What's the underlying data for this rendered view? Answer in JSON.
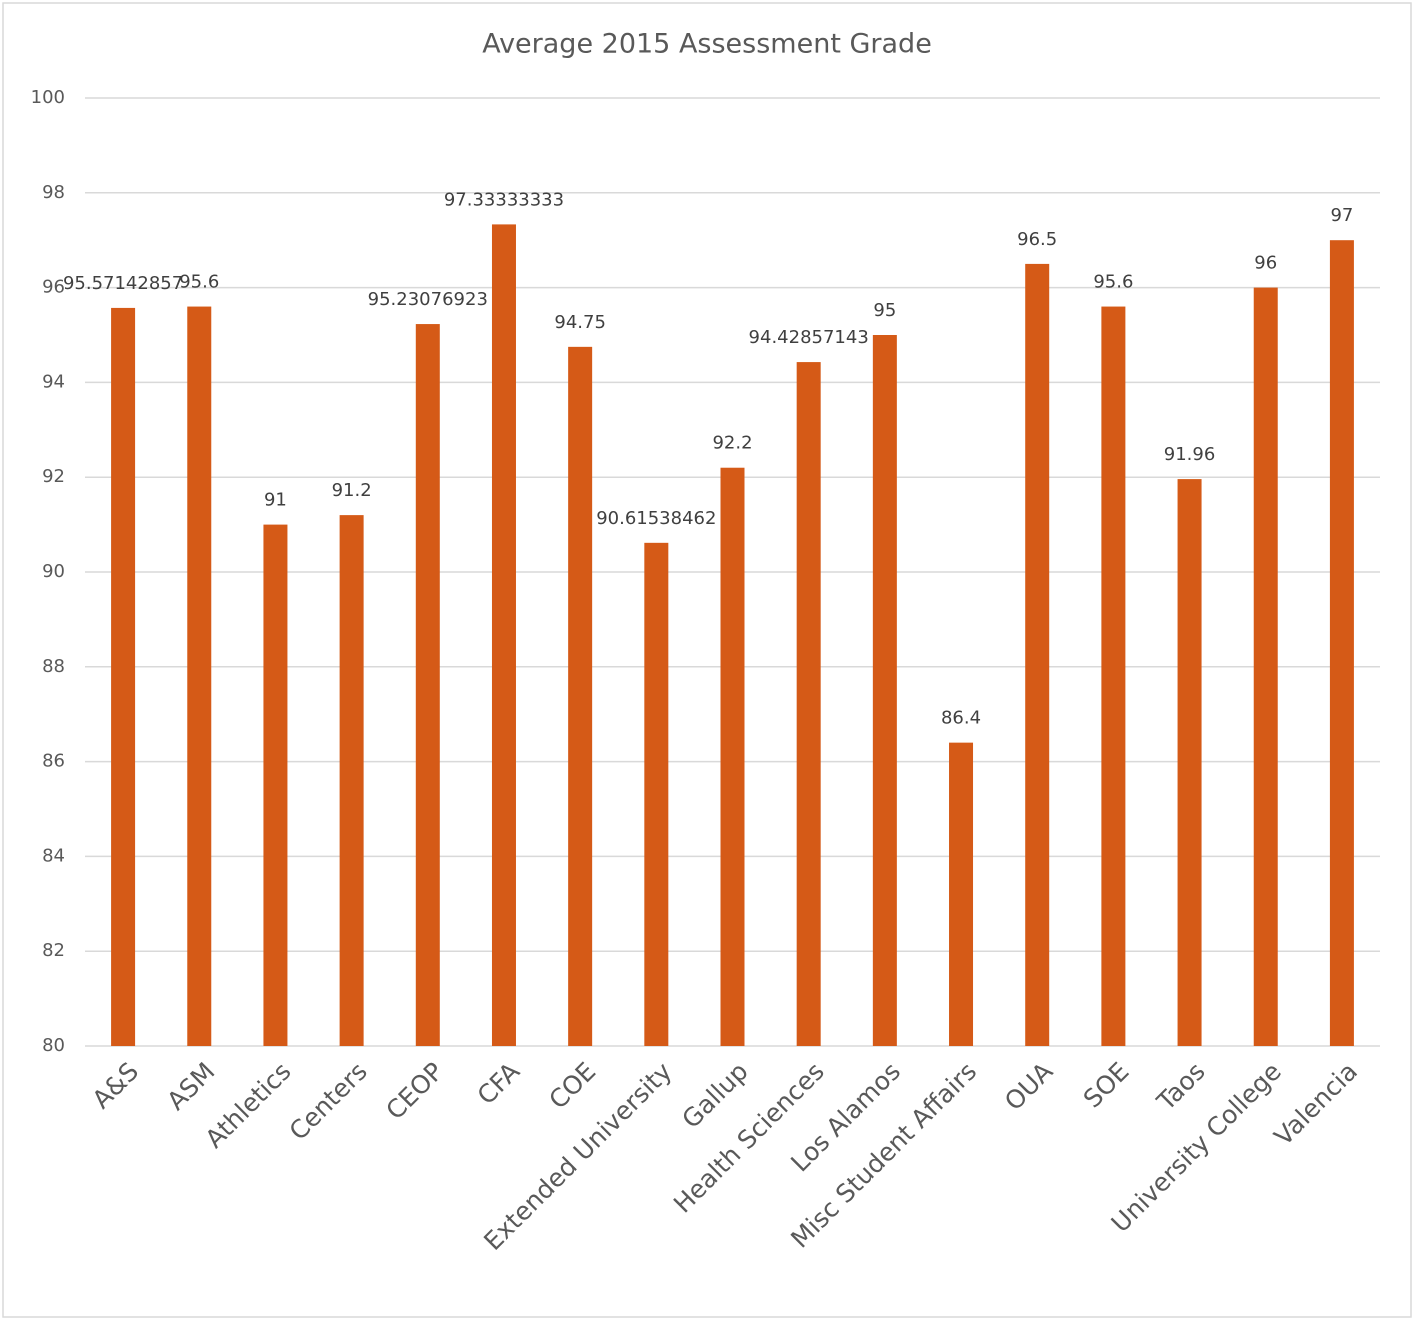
{
  "chart_data": {
    "type": "bar",
    "title": "Average 2015 Assessment Grade",
    "categories": [
      "A&S",
      "ASM",
      "Athletics",
      "Centers",
      "CEOP",
      "CFA",
      "COE",
      "Extended University",
      "Gallup",
      "Health Sciences",
      "Los Alamos",
      "Misc Student Affairs",
      "OUA",
      "SOE",
      "Taos",
      "University College",
      "Valencia"
    ],
    "values": [
      95.57142857,
      95.6,
      91,
      91.2,
      95.23076923,
      97.33333333,
      94.75,
      90.61538462,
      92.2,
      94.42857143,
      95,
      86.4,
      96.5,
      95.6,
      91.96,
      96,
      97
    ],
    "color": "#d55a17",
    "ylim": [
      80,
      100
    ],
    "yticks": [
      80,
      82,
      84,
      86,
      88,
      90,
      92,
      94,
      96,
      98,
      100
    ],
    "grid": true
  }
}
